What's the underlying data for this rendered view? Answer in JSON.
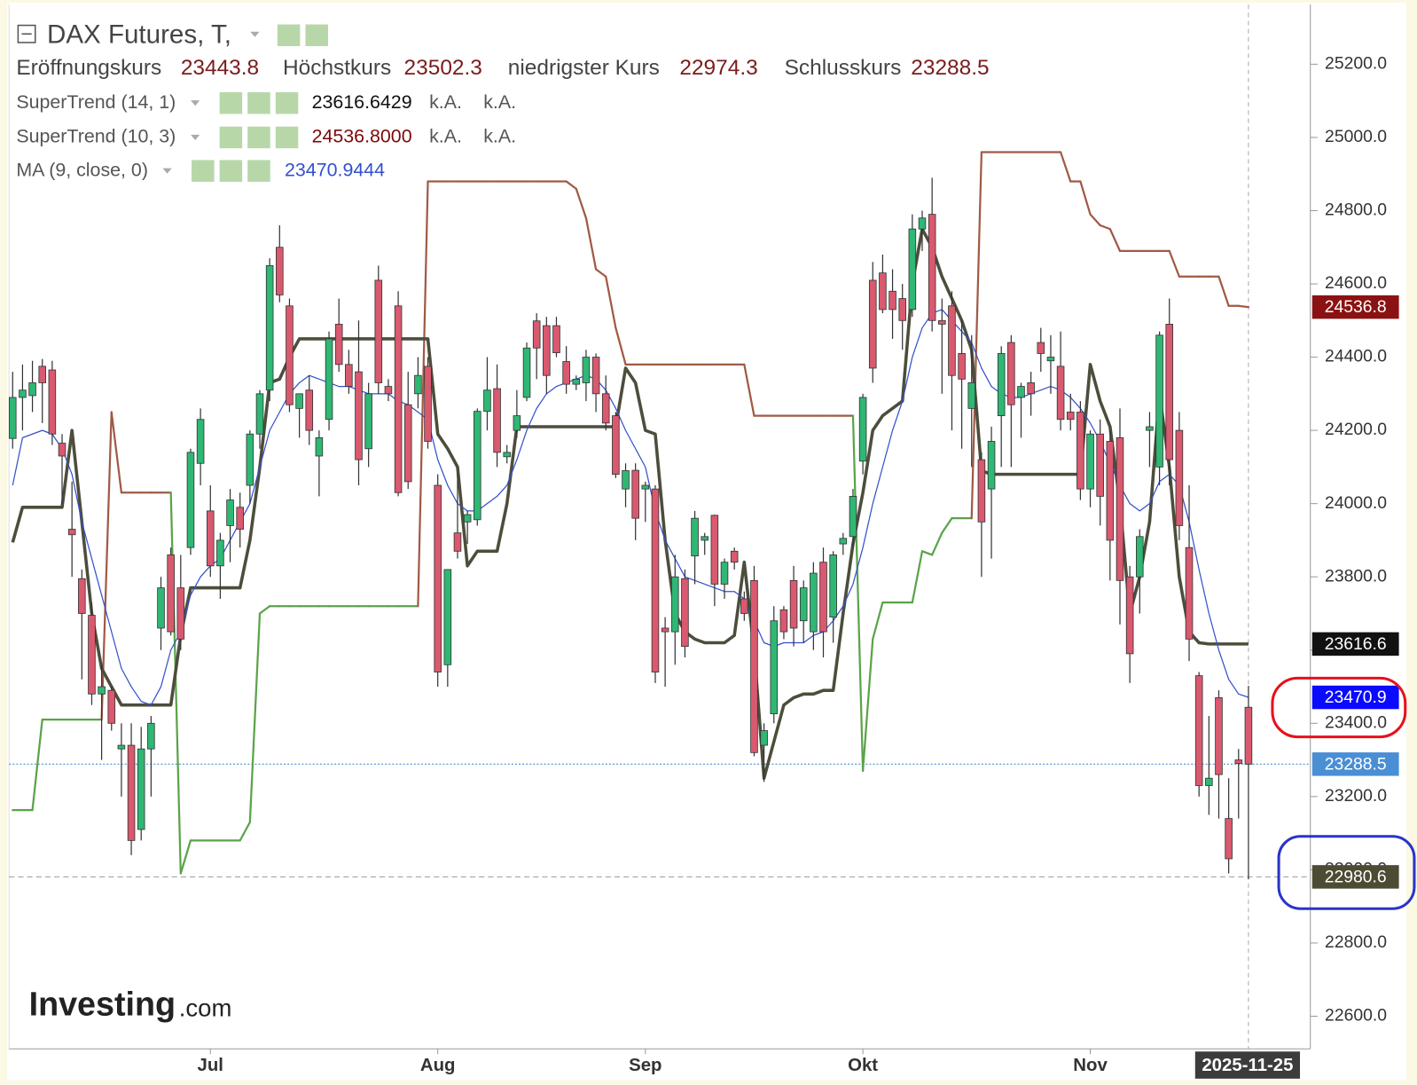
{
  "chart_data": {
    "type": "candlestick",
    "title": "DAX Futures, T,",
    "ohlc_legend": [
      {
        "label": "Eröffnungskurs",
        "value": 23443.8
      },
      {
        "label": "Höchstkurs",
        "value": 23502.3
      },
      {
        "label": "niedrigster Kurs",
        "value": 22974.3
      },
      {
        "label": "Schlusskurs",
        "value": 23288.5
      }
    ],
    "watermark": [
      "Investing",
      ".com"
    ],
    "categories": [
      null,
      null,
      null,
      null,
      null,
      null,
      null,
      null,
      null,
      null,
      null,
      null,
      null,
      null,
      null,
      null,
      null,
      null,
      null,
      null,
      "Jul",
      null,
      null,
      null,
      null,
      null,
      null,
      null,
      null,
      null,
      null,
      null,
      null,
      null,
      null,
      null,
      null,
      null,
      null,
      null,
      null,
      null,
      null,
      "Aug",
      null,
      null,
      null,
      null,
      null,
      null,
      null,
      null,
      null,
      null,
      null,
      null,
      null,
      null,
      null,
      null,
      null,
      null,
      null,
      null,
      "Sep",
      null,
      null,
      null,
      null,
      null,
      null,
      null,
      null,
      null,
      null,
      null,
      null,
      null,
      null,
      null,
      null,
      null,
      null,
      null,
      null,
      null,
      "Okt",
      null,
      null,
      null,
      null,
      null,
      null,
      null,
      null,
      null,
      null,
      null,
      null,
      null,
      null,
      null,
      null,
      null,
      null,
      null,
      null,
      null,
      null,
      "Nov",
      null,
      null,
      null,
      null,
      null,
      null,
      null,
      null,
      null,
      null,
      null,
      null,
      null,
      null,
      null,
      "2025-11-25"
    ],
    "open": [
      24178,
      24290,
      24295,
      24375,
      24365,
      24165,
      23930,
      23795,
      23695,
      23480,
      23490,
      23330,
      23340,
      23110,
      23330,
      23660,
      23860,
      23770,
      23880,
      24110,
      23980,
      23830,
      23940,
      23990,
      24050,
      24190,
      24310,
      24700,
      24540,
      24260,
      24310,
      24130,
      24230,
      24490,
      24380,
      24360,
      24150,
      24610,
      24320,
      24540,
      24270,
      24300,
      24375,
      24050,
      23560,
      23920,
      23950,
      23956,
      24252,
      24314,
      24128,
      24200,
      24290,
      24499,
      24486,
      24486,
      24388,
      24326,
      24330,
      24400,
      24300,
      24240,
      24040,
      24091,
      24040,
      24040,
      23660,
      23650,
      23795,
      23857,
      23900,
      23968,
      23780,
      23870,
      23740,
      23790,
      23340,
      23426,
      23710,
      23790,
      23680,
      23650,
      23840,
      23690,
      23890,
      23910,
      24116,
      24610,
      24630,
      24580,
      24560,
      24530,
      24750,
      24790,
      24500,
      24540,
      24410,
      24260,
      24120,
      24040,
      24240,
      24440,
      24290,
      24330,
      24440,
      24390,
      24375,
      24250,
      24250,
      24040,
      24190,
      24170,
      24180,
      23800,
      23800,
      24200,
      24100,
      24490,
      24200,
      23880,
      23530,
      23230,
      23470,
      23140,
      23300,
      23443.8
    ],
    "high": [
      24360,
      24380,
      24390,
      24395,
      24390,
      24190,
      24060,
      23820,
      23730,
      23560,
      23500,
      23400,
      23400,
      23390,
      23420,
      23800,
      23880,
      23860,
      24150,
      24260,
      24050,
      23920,
      24040,
      24030,
      24200,
      24310,
      24670,
      24760,
      24560,
      24300,
      24350,
      24200,
      24470,
      24560,
      24420,
      24500,
      24330,
      24650,
      24340,
      24580,
      24360,
      24400,
      24400,
      24080,
      23820,
      24080,
      23980,
      24260,
      24400,
      24380,
      24160,
      24310,
      24440,
      24520,
      24510,
      24510,
      24430,
      24350,
      24420,
      24410,
      24350,
      24250,
      24110,
      24110,
      24060,
      24050,
      23690,
      23860,
      23820,
      23980,
      23920,
      23970,
      23850,
      23880,
      23760,
      23830,
      23400,
      23720,
      23720,
      23830,
      23790,
      23840,
      23880,
      23870,
      23920,
      24040,
      24300,
      24660,
      24680,
      24640,
      24600,
      24790,
      24800,
      24890,
      24560,
      24580,
      24500,
      24460,
      24140,
      24210,
      24430,
      24460,
      24330,
      24360,
      24480,
      24460,
      24470,
      24300,
      24280,
      24200,
      24230,
      24200,
      24260,
      23830,
      23930,
      24250,
      24470,
      24560,
      24250,
      24050,
      23540,
      23420,
      23490,
      23250,
      23330,
      23502.3
    ],
    "low": [
      24150,
      24200,
      24250,
      24220,
      24160,
      24000,
      23800,
      23520,
      23450,
      23300,
      23380,
      23200,
      23040,
      23080,
      23200,
      23600,
      23640,
      23600,
      23860,
      24050,
      23800,
      23740,
      23840,
      23880,
      24000,
      24150,
      24280,
      24550,
      24250,
      24180,
      24160,
      24020,
      24200,
      24360,
      24300,
      24050,
      24100,
      24300,
      24280,
      24020,
      24040,
      24260,
      24150,
      23500,
      23500,
      23850,
      23890,
      23940,
      24200,
      24100,
      24110,
      24180,
      24280,
      24340,
      24300,
      24400,
      24300,
      24310,
      24280,
      24250,
      24200,
      24070,
      23990,
      23900,
      23950,
      23510,
      23500,
      23560,
      23580,
      23780,
      23860,
      23720,
      23740,
      23820,
      23680,
      23310,
      23240,
      23400,
      23630,
      23610,
      23620,
      23600,
      23580,
      23620,
      23860,
      23880,
      24080,
      24330,
      24520,
      24450,
      24420,
      24510,
      24690,
      24470,
      24300,
      24200,
      24150,
      24100,
      23800,
      23850,
      24100,
      24100,
      24180,
      24240,
      24360,
      24300,
      24200,
      24200,
      24010,
      23990,
      23940,
      23790,
      23670,
      23510,
      23700,
      24100,
      24050,
      24050,
      23900,
      23570,
      23200,
      23150,
      23140,
      22990,
      23140,
      22974.3
    ],
    "close": [
      24290,
      24310,
      24330,
      24330,
      24190,
      24130,
      23915,
      23700,
      23480,
      23500,
      23400,
      23340,
      23080,
      23330,
      23400,
      23770,
      23650,
      23630,
      24140,
      24230,
      23830,
      23900,
      24010,
      23930,
      24190,
      24300,
      24650,
      24570,
      24270,
      24300,
      24200,
      24180,
      24450,
      24380,
      24320,
      24120,
      24300,
      24330,
      24300,
      24030,
      24060,
      24350,
      24170,
      23540,
      23820,
      23870,
      23970,
      24252,
      24310,
      24140,
      24140,
      24240,
      24425,
      24425,
      24350,
      24412,
      24326,
      24340,
      24400,
      24300,
      24220,
      24080,
      24090,
      23960,
      24050,
      23540,
      23650,
      23800,
      23610,
      23960,
      23910,
      23780,
      23840,
      23840,
      23700,
      23320,
      23380,
      23680,
      23650,
      23660,
      23770,
      23810,
      23650,
      23860,
      23905,
      24020,
      24290,
      24370,
      24530,
      24530,
      24500,
      24750,
      24780,
      24500,
      24490,
      24350,
      24340,
      24330,
      23950,
      24170,
      24410,
      24270,
      24320,
      24300,
      24410,
      24400,
      24230,
      24230,
      24040,
      24190,
      24020,
      23900,
      23790,
      23590,
      23910,
      24210,
      24460,
      24120,
      23940,
      23630,
      23230,
      23250,
      23260,
      23030,
      23290,
      23288.5
    ],
    "up_color": "#2fb774",
    "down_color": "#d9596f",
    "series": [
      {
        "name": "SuperTrend (14, 1)",
        "color": "#4d4d3c",
        "legend_value": 23616.6429,
        "legend_na": [
          "k.A.",
          "k.A."
        ],
        "values": [
          23894,
          23990,
          23990,
          23990,
          23990,
          23990,
          24200,
          23950,
          23700,
          23550,
          23500,
          23450,
          23450,
          23450,
          23450,
          23450,
          23450,
          23640,
          23770,
          23770,
          23770,
          23770,
          23770,
          23770,
          23900,
          24100,
          24330,
          24340,
          24400,
          24450,
          24450,
          24450,
          24450,
          24450,
          24450,
          24450,
          24450,
          24450,
          24450,
          24450,
          24450,
          24450,
          24450,
          24190,
          24150,
          24100,
          23830,
          23870,
          23870,
          23870,
          24000,
          24210,
          24210,
          24210,
          24210,
          24210,
          24210,
          24210,
          24210,
          24210,
          24210,
          24210,
          24370,
          24330,
          24200,
          24190,
          23900,
          23700,
          23650,
          23630,
          23620,
          23620,
          23620,
          23640,
          23840,
          23600,
          23250,
          23350,
          23450,
          23470,
          23480,
          23480,
          23490,
          23490,
          23700,
          23890,
          24030,
          24200,
          24240,
          24260,
          24280,
          24600,
          24750,
          24700,
          24620,
          24560,
          24500,
          24420,
          24090,
          24080,
          24080,
          24080,
          24080,
          24080,
          24080,
          24080,
          24080,
          24080,
          24080,
          24380,
          24280,
          24210,
          24000,
          23700,
          23800,
          23950,
          24300,
          24100,
          23800,
          23650,
          23620,
          23616.6429,
          23616.6429,
          23616.6429,
          23616.6429,
          23616.6429
        ]
      },
      {
        "name": "SuperTrend (10, 3)",
        "color": "#a05a45",
        "up_color": "#5aa34a",
        "legend_value": {
          "value": 24536.8,
          "label": "24536.8000"
        },
        "legend_na": [
          "k.A.",
          "k.A."
        ],
        "values": [
          23163,
          23163,
          23163,
          23410,
          23410,
          23410,
          23410,
          23410,
          23410,
          23410,
          24250,
          24030,
          24030,
          24030,
          24030,
          24030,
          24030,
          22990,
          23080,
          23080,
          23080,
          23080,
          23080,
          23080,
          23130,
          23700,
          23720,
          23720,
          23720,
          23720,
          23720,
          23720,
          23720,
          23720,
          23720,
          23720,
          23720,
          23720,
          23720,
          23720,
          23720,
          23720,
          24880,
          24880,
          24880,
          24880,
          24880,
          24880,
          24880,
          24880,
          24880,
          24880,
          24880,
          24880,
          24880,
          24880,
          24880,
          24860,
          24780,
          24640,
          24620,
          24480,
          24380,
          24380,
          24380,
          24380,
          24380,
          24380,
          24380,
          24380,
          24380,
          24380,
          24380,
          24380,
          24380,
          24240,
          24240,
          24240,
          24240,
          24240,
          24240,
          24240,
          24240,
          24240,
          24240,
          24240,
          23270,
          23630,
          23730,
          23730,
          23730,
          23730,
          23870,
          23860,
          23920,
          23960,
          23960,
          23960,
          24960,
          24960,
          24960,
          24960,
          24960,
          24960,
          24960,
          24960,
          24960,
          24880,
          24880,
          24790,
          24760,
          24750,
          24690,
          24690,
          24690,
          24690,
          24690,
          24690,
          24620,
          24620,
          24620,
          24620,
          24620,
          24540,
          24540,
          24536.8
        ]
      },
      {
        "name": "MA (9, close, 0)",
        "color": "#3350cc",
        "legend_value": 23470.9444,
        "values": [
          24050,
          24180,
          24190,
          24200,
          24190,
          24150,
          24080,
          23950,
          23850,
          23750,
          23650,
          23550,
          23500,
          23460,
          23450,
          23500,
          23600,
          23650,
          23750,
          23800,
          23830,
          23850,
          23900,
          23950,
          24000,
          24100,
          24200,
          24250,
          24300,
          24330,
          24350,
          24340,
          24330,
          24320,
          24320,
          24310,
          24300,
          24300,
          24300,
          24280,
          24270,
          24250,
          24230,
          24120,
          24050,
          24000,
          23980,
          23980,
          24000,
          24020,
          24050,
          24120,
          24200,
          24260,
          24300,
          24320,
          24330,
          24340,
          24350,
          24340,
          24310,
          24260,
          24200,
          24150,
          24100,
          23980,
          23900,
          23850,
          23800,
          23790,
          23780,
          23770,
          23760,
          23760,
          23740,
          23680,
          23620,
          23610,
          23620,
          23620,
          23620,
          23640,
          23650,
          23680,
          23720,
          23780,
          23880,
          24000,
          24100,
          24200,
          24280,
          24400,
          24480,
          24520,
          24530,
          24500,
          24470,
          24440,
          24370,
          24320,
          24300,
          24290,
          24290,
          24300,
          24310,
          24320,
          24310,
          24290,
          24260,
          24220,
          24170,
          24110,
          24050,
          24000,
          23980,
          24000,
          24060,
          24080,
          24050,
          23950,
          23820,
          23700,
          23600,
          23520,
          23480,
          23470.9444
        ]
      }
    ],
    "ylim": [
      22511,
      25363
    ],
    "yticks": [
      {
        "value": 22600,
        "label": "22600.0"
      },
      {
        "value": 22800,
        "label": "22800.0"
      },
      {
        "value": 23000,
        "label": "23000.0"
      },
      {
        "value": 23200,
        "label": "23200.0"
      },
      {
        "value": 23400,
        "label": "23400.0"
      },
      {
        "value": 23600,
        "label": "23600.0"
      },
      {
        "value": 23800,
        "label": "23800.0"
      },
      {
        "value": 24000,
        "label": "24000.0"
      },
      {
        "value": 24200,
        "label": "24200.0"
      },
      {
        "value": 24400,
        "label": "24400.0"
      },
      {
        "value": 24600,
        "label": "24600.0"
      },
      {
        "value": 24800,
        "label": "24800.0"
      },
      {
        "value": 25000,
        "label": "25000.0"
      },
      {
        "value": 25200,
        "label": "25200.0"
      }
    ],
    "price_badges": [
      {
        "value": 24536.8,
        "color": "#8b1212"
      },
      {
        "value": 23616.6,
        "color": "#111111"
      },
      {
        "value": 23470.9,
        "color": "#0a0aff"
      },
      {
        "value": 23288.5,
        "color": "#4a8fd4",
        "line": "dotted"
      },
      {
        "value": 22980.6,
        "color": "#4d4b33",
        "line": "dashed"
      }
    ]
  }
}
